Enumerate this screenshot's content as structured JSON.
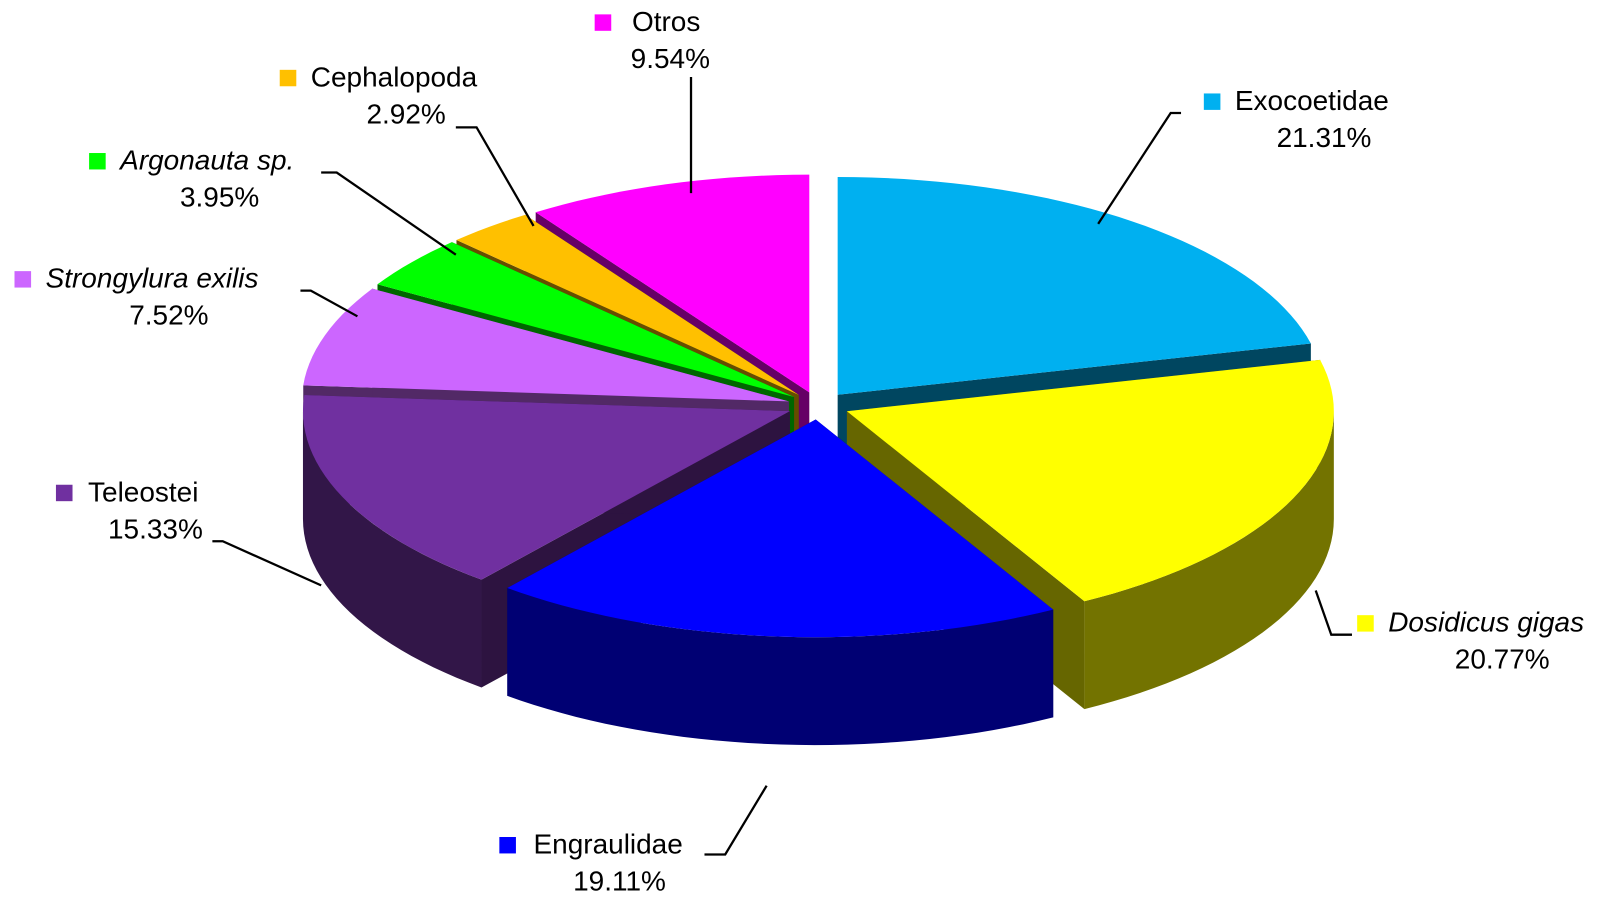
{
  "chart_data": {
    "type": "pie",
    "categories": [
      "Exocoetidae",
      "Dosidicus gigas",
      "Engraulidae",
      "Teleostei",
      "Strongylura exilis",
      "Argonauta sp.",
      "Cephalopoda",
      "Otros"
    ],
    "values": [
      21.31,
      20.77,
      19.11,
      15.33,
      7.52,
      3.95,
      2.92,
      9.54
    ],
    "value_labels": [
      "21.31%",
      "20.77%",
      "19.11%",
      "15.33%",
      "7.52%",
      "3.95%",
      "2.92%",
      "9.54%"
    ],
    "colors": [
      "#00b0f0",
      "#ffff00",
      "#0000ff",
      "#7030a0",
      "#cc66ff",
      "#00ff00",
      "#ffc000",
      "#ff00ff"
    ],
    "italic": [
      false,
      true,
      false,
      false,
      true,
      true,
      false,
      false
    ],
    "three_d": true,
    "exploded": true
  }
}
